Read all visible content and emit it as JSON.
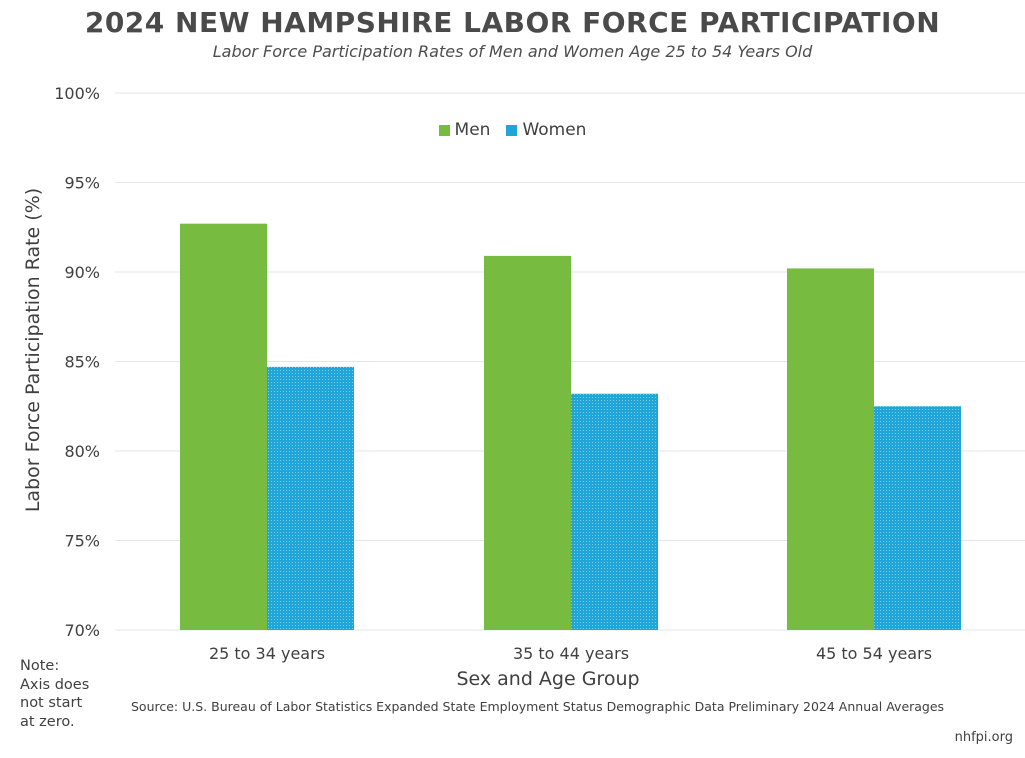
{
  "title": "2024 NEW HAMPSHIRE LABOR FORCE PARTICIPATION",
  "subtitle": "Labor Force Participation Rates of Men and Women Age 25 to 54 Years Old",
  "note": "Note:\nAxis does\nnot start\nat zero.",
  "source": "Source: U.S. Bureau of Labor Statistics Expanded State Employment Status Demographic Data Preliminary 2024 Annual Averages",
  "credit": "nhfpi.org",
  "colors": {
    "men": "#77bb41",
    "women": "#20a5d8",
    "grid": "#e6e6e6"
  },
  "chart_data": {
    "type": "bar",
    "title": "2024 NEW HAMPSHIRE LABOR FORCE PARTICIPATION",
    "subtitle": "Labor Force Participation Rates of Men and Women Age 25 to 54 Years Old",
    "xlabel": "Sex and Age Group",
    "ylabel": "Labor Force Participation Rate (%)",
    "categories": [
      "25 to 34 years",
      "35 to 44 years",
      "45 to 54 years"
    ],
    "series": [
      {
        "name": "Men",
        "values": [
          92.7,
          90.9,
          90.2
        ]
      },
      {
        "name": "Women",
        "values": [
          84.7,
          83.2,
          82.5
        ]
      }
    ],
    "ylim": [
      70,
      100
    ],
    "yticks": [
      70,
      75,
      80,
      85,
      90,
      95,
      100
    ],
    "ytick_labels": [
      "70%",
      "75%",
      "80%",
      "85%",
      "90%",
      "95%",
      "100%"
    ],
    "grid": true,
    "legend": "top-center"
  }
}
